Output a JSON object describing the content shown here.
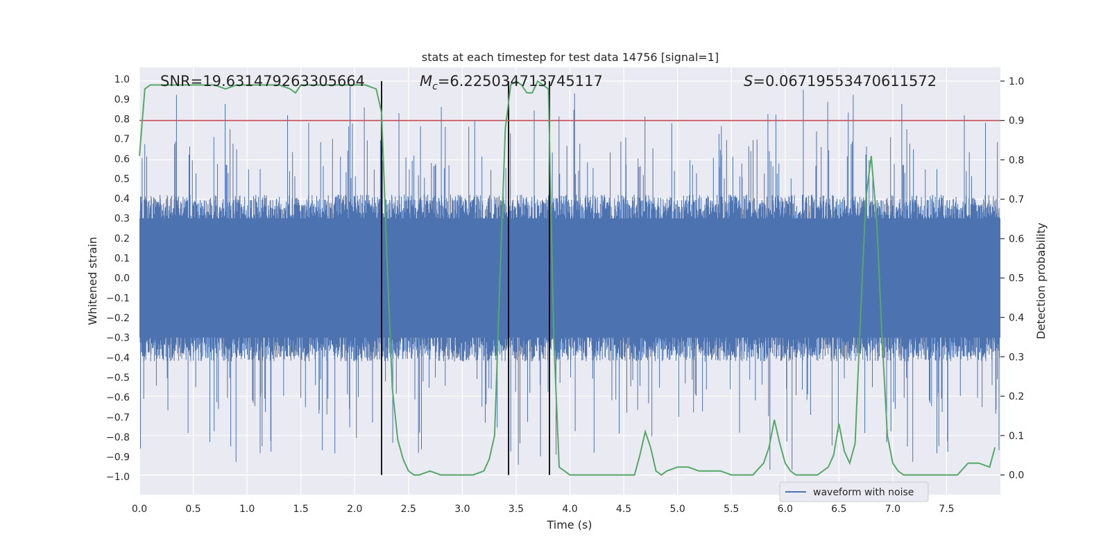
{
  "chart_data": {
    "type": "line",
    "title": "stats at each timestep for test data 14756 [signal=1]",
    "xlabel": "Time (s)",
    "ylabel_left": "Whitened strain",
    "ylabel_right": "Detection probability",
    "xlim": [
      0.0,
      8.0
    ],
    "ylim_left": [
      -1.09,
      1.06
    ],
    "ylim_right": [
      -0.05,
      1.035
    ],
    "x_ticks": [
      0.0,
      0.5,
      1.0,
      1.5,
      2.0,
      2.5,
      3.0,
      3.5,
      4.0,
      4.5,
      5.0,
      5.5,
      6.0,
      6.5,
      7.0,
      7.5
    ],
    "x_tick_labels": [
      "0.0",
      "0.5",
      "1.0",
      "1.5",
      "2.0",
      "2.5",
      "3.0",
      "3.5",
      "4.0",
      "4.5",
      "5.0",
      "5.5",
      "6.0",
      "6.5",
      "7.0",
      "7.5"
    ],
    "y_left_ticks": [
      1.0,
      0.9,
      0.8,
      0.7,
      0.6,
      0.5,
      0.4,
      0.3,
      0.2,
      0.1,
      0.0,
      -0.1,
      -0.2,
      -0.3,
      -0.4,
      -0.5,
      -0.6,
      -0.7,
      -0.8,
      -0.9,
      -1.0
    ],
    "y_left_tick_labels": [
      "1.0",
      "0.9",
      "0.8",
      "0.7",
      "0.6",
      "0.5",
      "0.4",
      "0.3",
      "0.2",
      "0.1",
      "0.0",
      "−0.1",
      "−0.2",
      "−0.3",
      "−0.4",
      "−0.5",
      "−0.6",
      "−0.7",
      "−0.8",
      "−0.9",
      "−1.0"
    ],
    "y_right_ticks": [
      1.0,
      0.9,
      0.8,
      0.7,
      0.6,
      0.5,
      0.4,
      0.3,
      0.2,
      0.1,
      0.0
    ],
    "y_right_tick_labels": [
      "1.0",
      "0.9",
      "0.8",
      "0.7",
      "0.6",
      "0.5",
      "0.4",
      "0.3",
      "0.2",
      "0.1",
      "0.0"
    ],
    "annotations": {
      "snr": "SNR=19.631479263305664",
      "mc_symbol": "M",
      "mc_sub": "c",
      "mc_value": "=6.225034713745117",
      "s_symbol": "S",
      "s_value": "=0.06719553470611572"
    },
    "threshold_right": 0.9,
    "vlines_x": [
      2.25,
      3.43,
      3.81
    ],
    "series": [
      {
        "name": "waveform with noise",
        "color": "#4c72b0",
        "axis": "left",
        "kind": "dense noisy strain, bulk amplitude ~±0.4, peaks to ~0.97 and ~-0.96"
      },
      {
        "name": "detection probability",
        "color": "#55a868",
        "axis": "right",
        "x": [
          0.0,
          0.05,
          0.1,
          0.2,
          0.3,
          0.4,
          0.5,
          0.6,
          0.7,
          0.8,
          0.9,
          1.0,
          1.1,
          1.2,
          1.3,
          1.4,
          1.45,
          1.5,
          1.55,
          1.6,
          1.7,
          1.8,
          1.9,
          2.0,
          2.1,
          2.2,
          2.25,
          2.3,
          2.35,
          2.4,
          2.45,
          2.5,
          2.55,
          2.6,
          2.7,
          2.8,
          2.9,
          3.0,
          3.1,
          3.2,
          3.25,
          3.3,
          3.35,
          3.4,
          3.45,
          3.5,
          3.55,
          3.6,
          3.65,
          3.7,
          3.75,
          3.8,
          3.85,
          3.9,
          3.95,
          4.0,
          4.1,
          4.2,
          4.3,
          4.4,
          4.5,
          4.6,
          4.65,
          4.7,
          4.75,
          4.8,
          4.85,
          4.9,
          5.0,
          5.1,
          5.2,
          5.3,
          5.4,
          5.5,
          5.6,
          5.7,
          5.8,
          5.85,
          5.9,
          5.95,
          6.0,
          6.05,
          6.1,
          6.2,
          6.3,
          6.4,
          6.45,
          6.5,
          6.55,
          6.6,
          6.65,
          6.7,
          6.75,
          6.8,
          6.85,
          6.9,
          6.95,
          7.0,
          7.05,
          7.1,
          7.2,
          7.3,
          7.4,
          7.5,
          7.6,
          7.7,
          7.8,
          7.9,
          7.95
        ],
        "values": [
          0.81,
          0.98,
          0.99,
          0.99,
          0.99,
          0.99,
          0.99,
          0.99,
          0.99,
          0.98,
          0.99,
          0.99,
          0.99,
          0.99,
          0.99,
          0.98,
          0.97,
          0.99,
          0.99,
          0.99,
          0.99,
          0.99,
          0.99,
          0.99,
          0.99,
          0.98,
          0.92,
          0.55,
          0.22,
          0.09,
          0.04,
          0.01,
          0.0,
          0.0,
          0.01,
          0.0,
          0.0,
          0.0,
          0.0,
          0.01,
          0.04,
          0.1,
          0.5,
          0.88,
          0.99,
          1.0,
          0.99,
          0.97,
          0.97,
          1.0,
          0.99,
          0.98,
          0.35,
          0.02,
          0.01,
          0.0,
          0.0,
          0.0,
          0.0,
          0.0,
          0.0,
          0.0,
          0.05,
          0.11,
          0.07,
          0.01,
          0.0,
          0.01,
          0.02,
          0.02,
          0.01,
          0.01,
          0.01,
          0.0,
          0.0,
          0.0,
          0.03,
          0.07,
          0.14,
          0.08,
          0.03,
          0.01,
          0.0,
          0.0,
          0.0,
          0.02,
          0.05,
          0.13,
          0.06,
          0.03,
          0.08,
          0.4,
          0.7,
          0.81,
          0.65,
          0.35,
          0.1,
          0.03,
          0.01,
          0.0,
          0.0,
          0.0,
          0.0,
          0.0,
          0.0,
          0.03,
          0.03,
          0.02,
          0.07
        ]
      }
    ],
    "legend": {
      "label": "waveform with noise",
      "placement": "lower-right"
    },
    "grid": true
  }
}
